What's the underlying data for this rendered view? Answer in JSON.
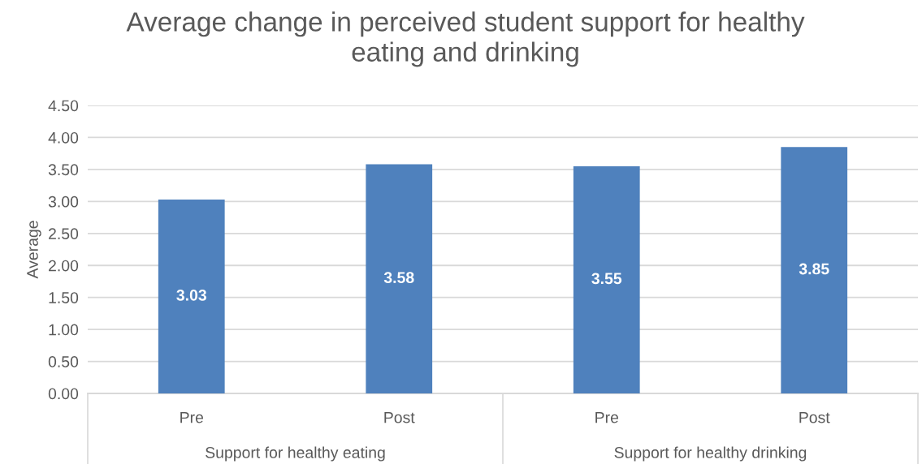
{
  "chart_data": {
    "type": "bar",
    "title": "Average change in perceived student support for healthy eating and drinking",
    "ylabel": "Average",
    "categories": [
      "Pre",
      "Post",
      "Pre",
      "Post"
    ],
    "values": [
      3.03,
      3.58,
      3.55,
      3.85
    ],
    "color": "#4f81bd",
    "ylim": [
      0,
      4.5
    ],
    "yticks": [
      {
        "value": 0,
        "label": "0.00"
      },
      {
        "value": 0.5,
        "label": "0.50"
      },
      {
        "value": 1,
        "label": "1.00"
      },
      {
        "value": 1.5,
        "label": "1.50"
      },
      {
        "value": 2,
        "label": "2.00"
      },
      {
        "value": 2.5,
        "label": "2.50"
      },
      {
        "value": 3,
        "label": "3.00"
      },
      {
        "value": 3.5,
        "label": "3.50"
      },
      {
        "value": 4,
        "label": "4.00"
      },
      {
        "value": 4.5,
        "label": "4.50"
      }
    ],
    "grid": "y",
    "legend": false,
    "data_labels": true,
    "annotations": [
      "Support for healthy eating",
      "Support for healthy drinking"
    ]
  }
}
